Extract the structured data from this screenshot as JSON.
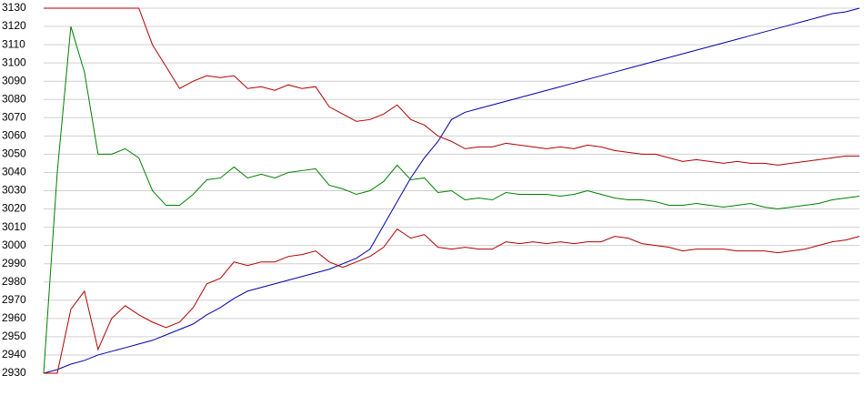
{
  "chart_data": {
    "type": "line",
    "ylim": [
      2930,
      3130
    ],
    "yticks": [
      2930,
      2940,
      2950,
      2960,
      2970,
      2980,
      2990,
      3000,
      3010,
      3020,
      3030,
      3040,
      3050,
      3060,
      3070,
      3080,
      3090,
      3100,
      3110,
      3120,
      3130
    ],
    "grid": true,
    "series": [
      {
        "color": "#0000a8",
        "values": [
          2930,
          2932,
          2935,
          2937,
          2940,
          2942,
          2944,
          2946,
          2948,
          2951,
          2954,
          2957,
          2962,
          2966,
          2971,
          2975,
          2977,
          2979,
          2981,
          2983,
          2985,
          2987,
          2990,
          2993,
          2998,
          3011,
          3024,
          3037,
          3048,
          3057,
          3069,
          3073,
          3075,
          3077,
          3079,
          3081,
          3083,
          3085,
          3087,
          3089,
          3091,
          3093,
          3095,
          3097,
          3099,
          3101,
          3103,
          3105,
          3107,
          3109,
          3111,
          3113,
          3115,
          3117,
          3119,
          3121,
          3123,
          3125,
          3127,
          3128,
          3130
        ]
      },
      {
        "color": "#b00000",
        "values": [
          3130,
          3130,
          3130,
          3130,
          3130,
          3130,
          3130,
          3130,
          3110,
          3098,
          3086,
          3090,
          3093,
          3092,
          3093,
          3086,
          3087,
          3085,
          3088,
          3086,
          3087,
          3076,
          3072,
          3068,
          3069,
          3072,
          3077,
          3069,
          3066,
          3060,
          3057,
          3053,
          3054,
          3054,
          3056,
          3055,
          3054,
          3053,
          3054,
          3053,
          3055,
          3054,
          3052,
          3051,
          3050,
          3050,
          3048,
          3046,
          3047,
          3046,
          3045,
          3046,
          3045,
          3045,
          3044,
          3045,
          3046,
          3047,
          3048,
          3049,
          3049
        ]
      },
      {
        "color": "#008000",
        "values": [
          2930,
          3040,
          3120,
          3095,
          3050,
          3050,
          3053,
          3048,
          3030,
          3022,
          3022,
          3028,
          3036,
          3037,
          3043,
          3037,
          3039,
          3037,
          3040,
          3041,
          3042,
          3033,
          3031,
          3028,
          3030,
          3035,
          3044,
          3036,
          3037,
          3029,
          3030,
          3025,
          3026,
          3025,
          3029,
          3028,
          3028,
          3028,
          3027,
          3028,
          3030,
          3028,
          3026,
          3025,
          3025,
          3024,
          3022,
          3022,
          3023,
          3022,
          3021,
          3022,
          3023,
          3021,
          3020,
          3021,
          3022,
          3023,
          3025,
          3026,
          3027
        ]
      },
      {
        "color": "#b00000",
        "values": [
          2930,
          2930,
          2965,
          2975,
          2943,
          2960,
          2967,
          2962,
          2958,
          2955,
          2958,
          2966,
          2979,
          2982,
          2991,
          2989,
          2991,
          2991,
          2994,
          2995,
          2997,
          2991,
          2988,
          2991,
          2994,
          2999,
          3009,
          3004,
          3006,
          2999,
          2998,
          2999,
          2998,
          2998,
          3002,
          3001,
          3002,
          3001,
          3002,
          3001,
          3002,
          3002,
          3005,
          3004,
          3001,
          3000,
          2999,
          2997,
          2998,
          2998,
          2998,
          2997,
          2997,
          2997,
          2996,
          2997,
          2998,
          3000,
          3002,
          3003,
          3005
        ]
      }
    ]
  }
}
